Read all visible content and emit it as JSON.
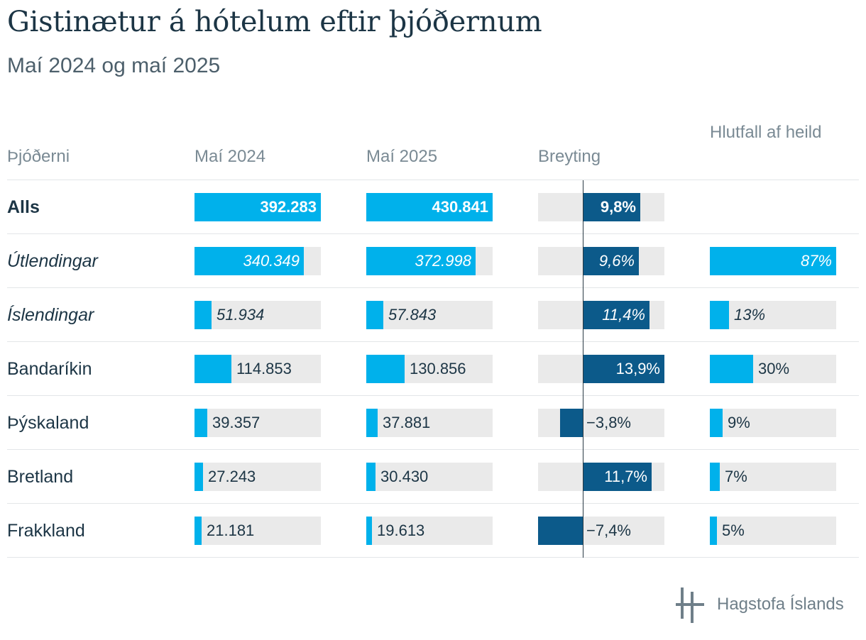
{
  "title": "Gistinætur á hótelum eftir þjóðernum",
  "subtitle": "Maí 2024 og maí 2025",
  "columns": {
    "label": "Þjóðerni",
    "may2024": "Maí 2024",
    "may2025": "Maí 2025",
    "change": "Breyting",
    "share": "Hlutfall af heild"
  },
  "chart_data": {
    "type": "table",
    "title": "Gistinætur á hótelum eftir þjóðernum",
    "subtitle": "Maí 2024 og maí 2025",
    "columns": [
      "Þjóðerni",
      "Maí 2024",
      "Maí 2025",
      "Breyting",
      "Hlutfall af heild"
    ],
    "rows": [
      {
        "label": "Alls",
        "may2024": 392283,
        "may2024_text": "392.283",
        "may2025": 430841,
        "may2025_text": "430.841",
        "change": 9.8,
        "change_text": "9,8%",
        "share": null,
        "share_text": "",
        "style": "bold"
      },
      {
        "label": "Útlendingar",
        "may2024": 340349,
        "may2024_text": "340.349",
        "may2025": 372998,
        "may2025_text": "372.998",
        "change": 9.6,
        "change_text": "9,6%",
        "share": 87,
        "share_text": "87%",
        "style": "italic"
      },
      {
        "label": "Íslendingar",
        "may2024": 51934,
        "may2024_text": "51.934",
        "may2025": 57843,
        "may2025_text": "57.843",
        "change": 11.4,
        "change_text": "11,4%",
        "share": 13,
        "share_text": "13%",
        "style": "italic"
      },
      {
        "label": "Bandaríkin",
        "may2024": 114853,
        "may2024_text": "114.853",
        "may2025": 130856,
        "may2025_text": "130.856",
        "change": 13.9,
        "change_text": "13,9%",
        "share": 30,
        "share_text": "30%",
        "style": "normal"
      },
      {
        "label": "Þýskaland",
        "may2024": 39357,
        "may2024_text": "39.357",
        "may2025": 37881,
        "may2025_text": "37.881",
        "change": -3.8,
        "change_text": "−3,8%",
        "share": 9,
        "share_text": "9%",
        "style": "normal"
      },
      {
        "label": "Bretland",
        "may2024": 27243,
        "may2024_text": "27.243",
        "may2025": 30430,
        "may2025_text": "30.430",
        "change": 11.7,
        "change_text": "11,7%",
        "share": 7,
        "share_text": "7%",
        "style": "normal"
      },
      {
        "label": "Frakkland",
        "may2024": 21181,
        "may2024_text": "21.181",
        "may2025": 19613,
        "may2025_text": "19.613",
        "change": -7.4,
        "change_text": "−7,4%",
        "share": 5,
        "share_text": "5%",
        "style": "normal"
      }
    ],
    "scales": {
      "may2024_max": 392283,
      "may2025_max": 430841,
      "change_range": [
        -7.4,
        13.9
      ],
      "share_max": 87
    }
  },
  "colors": {
    "bar": "#00b1eb",
    "change_bar": "#0c5a8a",
    "track": "#eaeaea",
    "text": "#1c3545"
  },
  "logo": {
    "icon": "hagstofa-logo-icon",
    "text": "Hagstofa Íslands"
  }
}
